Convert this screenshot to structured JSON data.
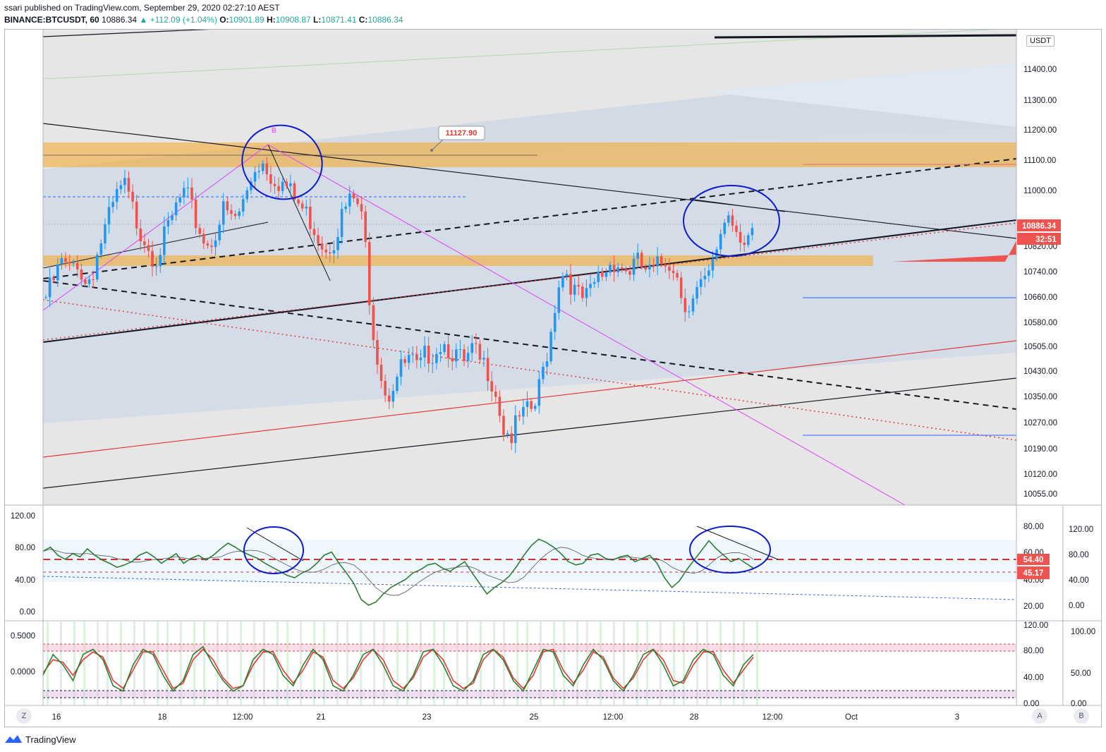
{
  "header": {
    "published": "ssari published on TradingView.com, September 29, 2020 02:27:10 AEST",
    "symbol": "BINANCE:BTCUSDT, 60",
    "last": "10886.34",
    "change": "+112.09 (+1.04%)",
    "o_label": "O:",
    "o": "10901.89",
    "h_label": "H:",
    "h": "10908.87",
    "l_label": "L:",
    "l": "10871.41",
    "c_label": "C:",
    "c": "10886.34"
  },
  "unit": "USDT",
  "footer": {
    "brand": "TradingView"
  },
  "buttons": {
    "z": "Z",
    "a": "A",
    "b": "B"
  },
  "colors": {
    "up": "#26a69a",
    "down": "#ef5350",
    "candle_up": "#2196f3",
    "candle_down": "#ef5350",
    "zone": "#f5a623",
    "channel": "#c8d6e6",
    "circle": "#0d1cc7",
    "rsi": "#2e7d32"
  },
  "chart_data": [
    {
      "type": "candlestick",
      "title": "BINANCE:BTCUSDT, 60",
      "x_tick_labels": [
        "16",
        "18",
        "12:00",
        "21",
        "23",
        "25",
        "12:00",
        "28",
        "12:00",
        "Oct",
        "3"
      ],
      "y_tick_labels": [
        "11400.00",
        "11300.00",
        "11200.00",
        "11100.00",
        "11000.00",
        "10820.00",
        "10740.00",
        "10660.00",
        "10580.00",
        "10505.00",
        "10430.00",
        "10350.00",
        "10270.00",
        "10190.00",
        "10120.00",
        "10055.00"
      ],
      "ylim": [
        10000,
        11500
      ],
      "last_price": 10886.34,
      "last_price_label": "10886.34",
      "countdown": "32:51",
      "annotations": [
        {
          "label": "11127.90",
          "value": 11127.9
        },
        {
          "label": "B"
        }
      ],
      "series": [
        {
          "name": "BTCUSDT",
          "close_path": [
            10680,
            10730,
            10790,
            10760,
            10800,
            10720,
            10760,
            10850,
            10920,
            10990,
            11040,
            10970,
            10900,
            10860,
            10800,
            10850,
            10910,
            10980,
            11010,
            10940,
            10880,
            10840,
            10900,
            10960,
            10920,
            10950,
            11020,
            11100,
            11110,
            11070,
            11050,
            11030,
            10990,
            10960,
            10930,
            10880,
            10840,
            10860,
            10930,
            10980,
            10990,
            10890,
            10600,
            10460,
            10360,
            10420,
            10460,
            10480,
            10440,
            10500,
            10510,
            10540,
            10520,
            10490,
            10460,
            10510,
            10470,
            10450,
            10380,
            10260,
            10240,
            10290,
            10310,
            10330,
            10440,
            10560,
            10730,
            10770,
            10700,
            10670,
            10680,
            10740,
            10760,
            10800,
            10780,
            10760,
            10790,
            10770,
            10750,
            10780,
            10800,
            10780,
            10680,
            10650,
            10700,
            10720,
            10780,
            10900,
            10950,
            10900,
            10870,
            10886
          ]
        }
      ]
    },
    {
      "type": "line",
      "panel": "RSI",
      "y_tick_labels": [
        "120.00",
        "80.00",
        "40.00",
        "0.00"
      ],
      "y_tick_labels_right": [
        "120.00",
        "80.00",
        "40.00",
        "0.00"
      ],
      "inner_labels": [
        "80.00",
        "60.00",
        "40.00",
        "20.00"
      ],
      "ylim": [
        -10,
        130
      ],
      "levels": [
        54.4,
        45.17
      ],
      "level_labels": [
        "54.40",
        "45.17"
      ],
      "series": [
        {
          "name": "RSI",
          "values": [
            75,
            80,
            70,
            65,
            72,
            68,
            78,
            70,
            64,
            60,
            55,
            58,
            62,
            70,
            74,
            68,
            60,
            66,
            72,
            60,
            66,
            70,
            64,
            70,
            78,
            85,
            80,
            74,
            70,
            66,
            60,
            55,
            50,
            45,
            42,
            48,
            52,
            60,
            70,
            74,
            60,
            48,
            35,
            15,
            8,
            12,
            22,
            30,
            35,
            40,
            48,
            52,
            58,
            60,
            54,
            50,
            56,
            62,
            48,
            35,
            22,
            30,
            36,
            44,
            56,
            70,
            82,
            90,
            86,
            80,
            72,
            62,
            58,
            60,
            70,
            72,
            66,
            64,
            68,
            70,
            62,
            66,
            70,
            60,
            42,
            30,
            38,
            52,
            64,
            76,
            88,
            78,
            70,
            62,
            66,
            60,
            54
          ]
        }
      ]
    },
    {
      "type": "line",
      "panel": "Stochastic RSI",
      "y_tick_labels": [
        "0.5000",
        "0.0000"
      ],
      "y_tick_labels_right": [
        "120.00",
        "80.00",
        "40.00",
        "0.00"
      ],
      "y_tick_labels_far_right": [
        "100.00",
        "50.00",
        "0.00"
      ],
      "levels": [
        80,
        20
      ],
      "series": [
        {
          "name": "K",
          "values": [
            40,
            80,
            60,
            30,
            80,
            90,
            70,
            20,
            10,
            60,
            90,
            80,
            40,
            10,
            30,
            80,
            95,
            60,
            30,
            10,
            20,
            70,
            90,
            80,
            40,
            20,
            60,
            90,
            70,
            20,
            10,
            40,
            80,
            90,
            60,
            20,
            10,
            40,
            85,
            90,
            60,
            20,
            10,
            30,
            80,
            90,
            70,
            30,
            10,
            50,
            90,
            85,
            40,
            20,
            60,
            90,
            70,
            30,
            10,
            40,
            80,
            90,
            60,
            20,
            30,
            70,
            90,
            80,
            40,
            20,
            60,
            80
          ]
        },
        {
          "name": "D",
          "values": [
            45,
            70,
            65,
            40,
            70,
            85,
            75,
            30,
            15,
            50,
            85,
            85,
            50,
            15,
            25,
            70,
            90,
            70,
            35,
            15,
            20,
            60,
            85,
            85,
            50,
            25,
            50,
            85,
            75,
            30,
            15,
            35,
            70,
            90,
            70,
            30,
            15,
            35,
            75,
            90,
            70,
            30,
            15,
            25,
            70,
            90,
            75,
            35,
            15,
            40,
            85,
            90,
            50,
            25,
            50,
            85,
            75,
            35,
            15,
            35,
            70,
            90,
            70,
            30,
            25,
            60,
            85,
            85,
            50,
            25,
            50,
            75
          ]
        }
      ]
    }
  ]
}
